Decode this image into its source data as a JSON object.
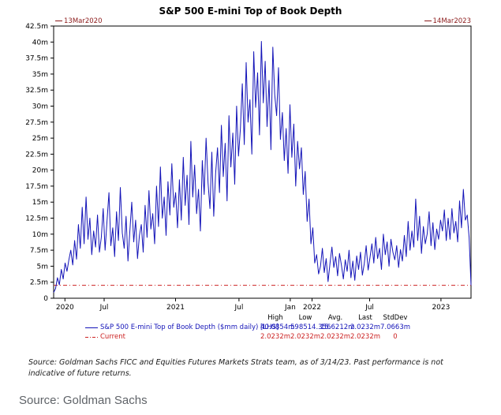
{
  "chart": {
    "title": "S&P 500 E-mini Top of Book Depth",
    "start_annotation": "13Mar2020",
    "end_annotation": "14Mar2023",
    "annotation_color": "#8b1a1a"
  },
  "legend": {
    "stats_header": [
      "High",
      "Low",
      "Avg.",
      "Last",
      "StdDev"
    ],
    "rows": [
      {
        "label": "S&P 500 E-mini Top of Book Depth ($mm daily) [LHS]",
        "color": "#1414b8",
        "sample": "solid",
        "values": [
          "40.0854m",
          "598514.356",
          "15.6212m",
          "2.0232m",
          "7.0663m"
        ]
      },
      {
        "label": "Current",
        "color": "#cc2222",
        "sample": "dashdot",
        "values": [
          "2.0232m",
          "2.0232m",
          "2.0232m",
          "2.0232m",
          "0"
        ]
      }
    ]
  },
  "footnote": "Source: Goldman Sachs FICC and Equities Futures Markets Strats team, as of 3/14/23. Past performance is not indicative of future returns.",
  "caption": "Source: Goldman Sachs",
  "chart_data": {
    "type": "line",
    "title": "S&P 500 E-mini Top of Book Depth",
    "unit": "millions (contracts depth, $mm daily)",
    "x_range_dates": [
      "13Mar2020",
      "14Mar2023"
    ],
    "ylim": [
      0,
      42.5
    ],
    "grid": false,
    "legend_position": "bottom",
    "y_ticks": {
      "values": [
        0,
        2.5,
        5,
        7.5,
        10,
        12.5,
        15,
        17.5,
        20,
        22.5,
        25,
        27.5,
        30,
        32.5,
        35,
        37.5,
        40,
        42.5
      ],
      "labels": [
        "0",
        "2.5m",
        "5m",
        "7.5m",
        "10m",
        "12.5m",
        "15m",
        "17.5m",
        "20m",
        "22.5m",
        "25m",
        "27.5m",
        "30m",
        "32.5m",
        "35m",
        "37.5m",
        "40m",
        "42.5m"
      ]
    },
    "x_ticks": [
      {
        "label": "2020",
        "pos": 0.027
      },
      {
        "label": "Jul",
        "pos": 0.121
      },
      {
        "label": "2021",
        "pos": 0.292
      },
      {
        "label": "Jul",
        "pos": 0.444
      },
      {
        "label": "Jan",
        "pos": 0.567
      },
      {
        "label": "2022",
        "pos": 0.619
      },
      {
        "label": "Jul",
        "pos": 0.757
      },
      {
        "label": "2023",
        "pos": 0.928
      }
    ],
    "series": [
      {
        "name": "S&P 500 E-mini Top of Book Depth ($mm daily) [LHS]",
        "color": "#1414b8",
        "style": "solid",
        "stats": {
          "high": "40.0854m",
          "low": "598514.356",
          "avg": "15.6212m",
          "last": "2.0232m",
          "stddev": "7.0663m"
        },
        "values": [
          0.9,
          1.5,
          3.2,
          2.1,
          4.5,
          3.0,
          5.5,
          4.2,
          6.0,
          7.5,
          5.2,
          9.0,
          6.1,
          11.5,
          7.8,
          14.2,
          8.5,
          15.8,
          9.2,
          12.5,
          6.8,
          10.5,
          8.0,
          13.0,
          7.2,
          9.5,
          14.0,
          7.5,
          12.0,
          16.5,
          8.2,
          11.0,
          6.5,
          13.5,
          9.0,
          17.3,
          10.2,
          7.8,
          12.8,
          5.8,
          10.5,
          15.0,
          8.8,
          12.2,
          6.2,
          9.8,
          11.5,
          7.2,
          14.5,
          9.5,
          16.8,
          10.8,
          13.2,
          8.5,
          17.5,
          11.2,
          20.5,
          12.5,
          15.8,
          9.8,
          18.2,
          13.0,
          21.0,
          14.2,
          16.5,
          11.0,
          18.5,
          12.2,
          22.0,
          14.5,
          19.2,
          11.5,
          24.5,
          15.8,
          20.8,
          13.2,
          17.0,
          10.5,
          21.5,
          16.2,
          25.0,
          18.0,
          14.0,
          22.8,
          12.8,
          19.5,
          23.5,
          16.5,
          27.0,
          19.0,
          24.2,
          15.2,
          28.5,
          20.5,
          25.8,
          17.8,
          30.0,
          22.2,
          26.5,
          33.5,
          24.0,
          36.8,
          27.5,
          31.0,
          22.5,
          38.5,
          29.8,
          35.2,
          25.5,
          40.1,
          30.5,
          37.0,
          26.8,
          34.0,
          23.2,
          39.2,
          31.8,
          28.5,
          36.0,
          24.8,
          29.0,
          21.5,
          26.5,
          19.5,
          30.2,
          22.0,
          27.2,
          17.5,
          24.5,
          20.2,
          23.5,
          16.2,
          19.8,
          12.0,
          15.5,
          8.5,
          11.0,
          5.5,
          6.8,
          3.8,
          5.0,
          7.8,
          4.0,
          6.2,
          2.6,
          5.5,
          8.0,
          4.8,
          6.5,
          3.5,
          7.0,
          5.2,
          3.0,
          6.0,
          4.2,
          7.5,
          3.2,
          5.8,
          2.8,
          6.6,
          4.5,
          7.2,
          3.6,
          5.4,
          8.2,
          4.4,
          6.4,
          8.5,
          5.5,
          9.5,
          6.2,
          7.8,
          4.5,
          10.0,
          6.8,
          8.8,
          5.0,
          9.2,
          7.2,
          6.0,
          8.2,
          4.8,
          7.6,
          5.8,
          9.8,
          6.5,
          12.0,
          7.5,
          10.5,
          8.0,
          15.5,
          9.0,
          12.8,
          7.0,
          11.2,
          8.5,
          10.0,
          13.5,
          8.2,
          11.8,
          7.6,
          10.8,
          9.2,
          12.2,
          10.5,
          13.8,
          9.0,
          12.5,
          9.2,
          14.0,
          10.2,
          12.0,
          8.8,
          15.2,
          11.0,
          17.0,
          12.2,
          13.0,
          9.5,
          2.0232
        ]
      },
      {
        "name": "Current",
        "color": "#cc2222",
        "style": "dashdot",
        "value": 2.0232,
        "stats": {
          "high": "2.0232m",
          "low": "2.0232m",
          "avg": "2.0232m",
          "last": "2.0232m",
          "stddev": "0"
        }
      }
    ]
  }
}
